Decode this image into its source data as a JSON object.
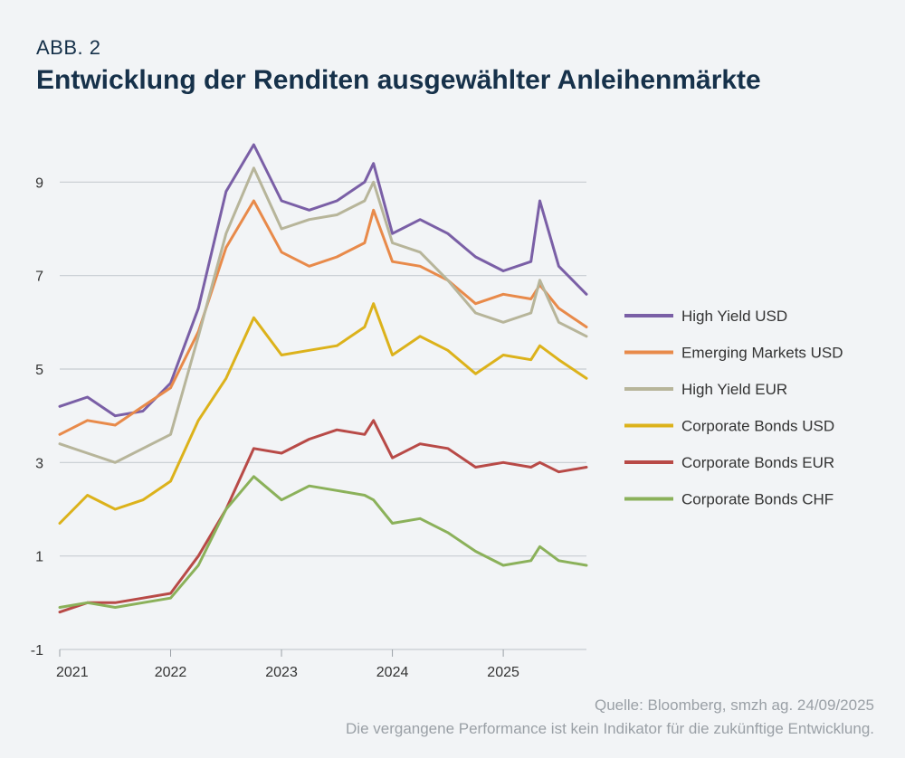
{
  "header": {
    "kicker": "ABB. 2",
    "title": "Entwicklung der Renditen ausgewählter Anleihenmärkte"
  },
  "footer": {
    "source": "Quelle: Bloomberg, smzh ag. 24/09/2025",
    "disclaimer": "Die vergangene Performance ist kein Indikator für die zukünftige Entwicklung."
  },
  "chart_data": {
    "type": "line",
    "title": "",
    "xlabel": "",
    "ylabel": "",
    "xlim": [
      2021.0,
      2025.75
    ],
    "ylim": [
      -1,
      9.8
    ],
    "yticks": [
      -1,
      1,
      3,
      5,
      7,
      9
    ],
    "xticks": [
      2021,
      2022,
      2023,
      2024,
      2025
    ],
    "xtick_labels": [
      "2021",
      "2022",
      "2023",
      "2024",
      "2025"
    ],
    "grid": "horizontal",
    "legend_position": "right",
    "x": [
      2021.0,
      2021.25,
      2021.5,
      2021.75,
      2022.0,
      2022.25,
      2022.5,
      2022.75,
      2023.0,
      2023.25,
      2023.5,
      2023.75,
      2023.83,
      2024.0,
      2024.25,
      2024.5,
      2024.75,
      2025.0,
      2025.25,
      2025.33,
      2025.5,
      2025.75
    ],
    "series": [
      {
        "name": "High Yield USD",
        "color": "#7a5fa6",
        "values": [
          4.2,
          4.4,
          4.0,
          4.1,
          4.7,
          6.3,
          8.8,
          9.8,
          8.6,
          8.4,
          8.6,
          9.0,
          9.4,
          7.9,
          8.2,
          7.9,
          7.4,
          7.1,
          7.3,
          8.6,
          7.2,
          6.6
        ]
      },
      {
        "name": "Emerging Markets USD",
        "color": "#e88a4a",
        "values": [
          3.6,
          3.9,
          3.8,
          4.2,
          4.6,
          5.8,
          7.6,
          8.6,
          7.5,
          7.2,
          7.4,
          7.7,
          8.4,
          7.3,
          7.2,
          6.9,
          6.4,
          6.6,
          6.5,
          6.8,
          6.3,
          5.9
        ]
      },
      {
        "name": "High Yield EUR",
        "color": "#b7b59a",
        "values": [
          3.4,
          3.2,
          3.0,
          3.3,
          3.6,
          5.7,
          7.9,
          9.3,
          8.0,
          8.2,
          8.3,
          8.6,
          9.0,
          7.7,
          7.5,
          6.9,
          6.2,
          6.0,
          6.2,
          6.9,
          6.0,
          5.7
        ]
      },
      {
        "name": "Corporate Bonds USD",
        "color": "#dcb21b",
        "values": [
          1.7,
          2.3,
          2.0,
          2.2,
          2.6,
          3.9,
          4.8,
          6.1,
          5.3,
          5.4,
          5.5,
          5.9,
          6.4,
          5.3,
          5.7,
          5.4,
          4.9,
          5.3,
          5.2,
          5.5,
          5.2,
          4.8
        ]
      },
      {
        "name": "Corporate Bonds EUR",
        "color": "#b84a47",
        "values": [
          -0.2,
          0.0,
          0.0,
          0.1,
          0.2,
          1.0,
          2.0,
          3.3,
          3.2,
          3.5,
          3.7,
          3.6,
          3.9,
          3.1,
          3.4,
          3.3,
          2.9,
          3.0,
          2.9,
          3.0,
          2.8,
          2.9
        ]
      },
      {
        "name": "Corporate Bonds CHF",
        "color": "#8bb15a",
        "values": [
          -0.1,
          0.0,
          -0.1,
          0.0,
          0.1,
          0.8,
          2.0,
          2.7,
          2.2,
          2.5,
          2.4,
          2.3,
          2.2,
          1.7,
          1.8,
          1.5,
          1.1,
          0.8,
          0.9,
          1.2,
          0.9,
          0.8
        ]
      }
    ]
  }
}
